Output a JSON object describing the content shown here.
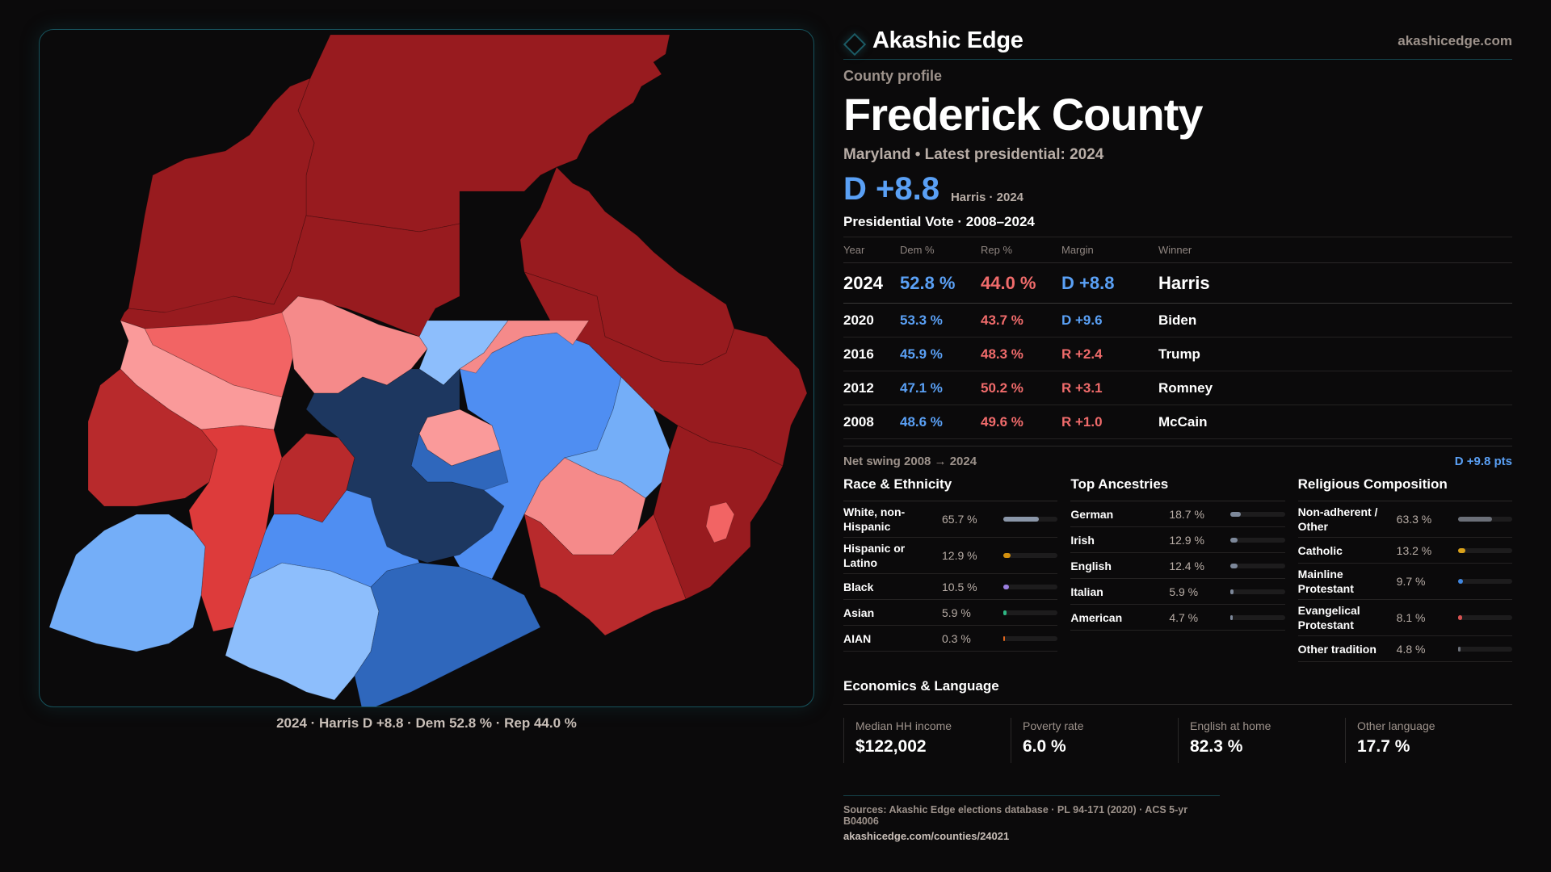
{
  "brand": {
    "name": "Akashic Edge",
    "url": "akashicedge.com",
    "icon": "diamond-icon"
  },
  "profile": {
    "kicker": "County profile",
    "county": "Frederick County",
    "state_line": "Maryland • Latest presidential: 2024",
    "headline_margin": "D +8.8",
    "headline_sub": "Harris · 2024"
  },
  "votes": {
    "title": "Presidential Vote · 2008–2024",
    "headers": [
      "Year",
      "Dem %",
      "Rep %",
      "Margin",
      "Winner"
    ],
    "rows": [
      {
        "year": "2024",
        "dem": "52.8 %",
        "rep": "44.0 %",
        "margin": "D +8.8",
        "party": "D",
        "winner": "Harris"
      },
      {
        "year": "2020",
        "dem": "53.3 %",
        "rep": "43.7 %",
        "margin": "D +9.6",
        "party": "D",
        "winner": "Biden"
      },
      {
        "year": "2016",
        "dem": "45.9 %",
        "rep": "48.3 %",
        "margin": "R +2.4",
        "party": "R",
        "winner": "Trump"
      },
      {
        "year": "2012",
        "dem": "47.1 %",
        "rep": "50.2 %",
        "margin": "R +3.1",
        "party": "R",
        "winner": "Romney"
      },
      {
        "year": "2008",
        "dem": "48.6 %",
        "rep": "49.6 %",
        "margin": "R +1.0",
        "party": "R",
        "winner": "McCain"
      }
    ],
    "swing_label": "Net swing 2008 → 2024",
    "swing_value": "D +9.8 pts"
  },
  "demographics": [
    {
      "title": "Race & Ethnicity",
      "items": [
        {
          "label": "White, non-Hispanic",
          "value": "65.7 %",
          "pct": 65.7,
          "color": "#8a96a8"
        },
        {
          "label": "Hispanic or Latino",
          "value": "12.9 %",
          "pct": 12.9,
          "color": "#d4900e"
        },
        {
          "label": "Black",
          "value": "10.5 %",
          "pct": 10.5,
          "color": "#9b7fe0"
        },
        {
          "label": "Asian",
          "value": "5.9 %",
          "pct": 5.9,
          "color": "#2fb784"
        },
        {
          "label": "AIAN",
          "value": "0.3 %",
          "pct": 0.3,
          "color": "#e0671f"
        }
      ]
    },
    {
      "title": "Top Ancestries",
      "items": [
        {
          "label": "German",
          "value": "18.7 %",
          "pct": 18.7,
          "color": "#7d889a"
        },
        {
          "label": "Irish",
          "value": "12.9 %",
          "pct": 12.9,
          "color": "#7d889a"
        },
        {
          "label": "English",
          "value": "12.4 %",
          "pct": 12.4,
          "color": "#7d889a"
        },
        {
          "label": "Italian",
          "value": "5.9 %",
          "pct": 5.9,
          "color": "#7d889a"
        },
        {
          "label": "American",
          "value": "4.7 %",
          "pct": 4.7,
          "color": "#7d889a"
        }
      ]
    },
    {
      "title": "Religious Composition",
      "items": [
        {
          "label": "Non-adherent / Other",
          "value": "63.3 %",
          "pct": 63.3,
          "color": "#6b6f78"
        },
        {
          "label": "Catholic",
          "value": "13.2 %",
          "pct": 13.2,
          "color": "#d9a11a"
        },
        {
          "label": "Mainline Protestant",
          "value": "9.7 %",
          "pct": 9.7,
          "color": "#3f86e0"
        },
        {
          "label": "Evangelical Protestant",
          "value": "8.1 %",
          "pct": 8.1,
          "color": "#d65151"
        },
        {
          "label": "Other tradition",
          "value": "4.8 %",
          "pct": 4.8,
          "color": "#6b6f78"
        }
      ]
    }
  ],
  "economics": {
    "title": "Economics & Language",
    "cards": [
      {
        "label": "Median HH income",
        "value": "$122,002"
      },
      {
        "label": "Poverty rate",
        "value": "6.0 %"
      },
      {
        "label": "English at home",
        "value": "82.3 %"
      },
      {
        "label": "Other language",
        "value": "17.7 %"
      }
    ]
  },
  "footer": {
    "sources": "Sources: Akashic Edge elections database · PL 94-171 (2020) · ACS 5-yr B04006",
    "url": "akashicedge.com/counties/24021"
  },
  "map": {
    "caption": "2024 · Harris D +8.8 · Dem 52.8 % · Rep 44.0 %",
    "colors": {
      "safe_r": "#981b1f",
      "likely_r": "#b82a2c",
      "lean_r": "#dd3b3b",
      "tilt_r": "#f26464",
      "slight_r": "#f58a8a",
      "toss_r": "#fa9a9a",
      "slight_d": "#8dbefc",
      "toss_d": "#74aef8",
      "lean_d": "#4f8ef2",
      "likely_d": "#2f67bc",
      "safe_d": "#1d3760"
    },
    "precincts": [
      {
        "name": "north-central",
        "cls": "safe_r"
      },
      {
        "name": "northeast",
        "cls": "safe_r"
      },
      {
        "name": "northwest",
        "cls": "safe_r"
      },
      {
        "name": "west-upper",
        "cls": "safe_r"
      },
      {
        "name": "east-upper",
        "cls": "safe_r"
      },
      {
        "name": "east-lower",
        "cls": "safe_r"
      },
      {
        "name": "west-band-1",
        "cls": "tilt_r"
      },
      {
        "name": "west-band-2",
        "cls": "toss_r"
      },
      {
        "name": "north-inner",
        "cls": "slight_r"
      },
      {
        "name": "west-lower",
        "cls": "likely_r"
      },
      {
        "name": "southwest-red",
        "cls": "lean_r"
      },
      {
        "name": "center-west-red",
        "cls": "likely_r"
      },
      {
        "name": "southwest-blue",
        "cls": "toss_d"
      },
      {
        "name": "south-west-light",
        "cls": "slight_d"
      },
      {
        "name": "south-central",
        "cls": "likely_d"
      },
      {
        "name": "south-blue",
        "cls": "lean_d"
      },
      {
        "name": "east-blue",
        "cls": "lean_d"
      },
      {
        "name": "east-light",
        "cls": "toss_d"
      },
      {
        "name": "southeast-pink",
        "cls": "slight_r"
      },
      {
        "name": "southeast-red",
        "cls": "likely_r"
      },
      {
        "name": "north-light-blue",
        "cls": "slight_d"
      },
      {
        "name": "north-pink",
        "cls": "slight_r"
      },
      {
        "name": "center-pink",
        "cls": "toss_r"
      },
      {
        "name": "center-mid-blue",
        "cls": "likely_d"
      },
      {
        "name": "frederick-city",
        "cls": "safe_d"
      },
      {
        "name": "east-edge-pink",
        "cls": "tilt_r"
      }
    ]
  }
}
